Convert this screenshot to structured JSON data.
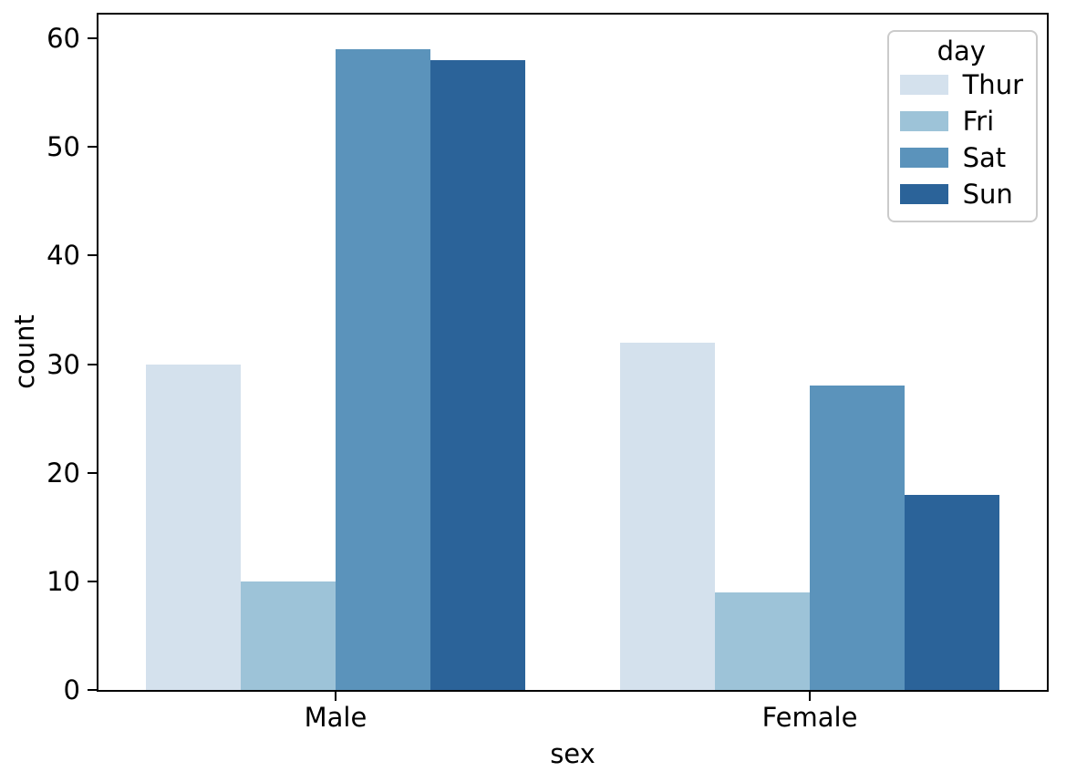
{
  "chart_data": {
    "type": "bar",
    "title": "",
    "xlabel": "sex",
    "ylabel": "count",
    "categories": [
      "Male",
      "Female"
    ],
    "series": [
      {
        "name": "Thur",
        "color": "#d4e1ed",
        "values": [
          30,
          32
        ]
      },
      {
        "name": "Fri",
        "color": "#9dc3d8",
        "values": [
          10,
          9
        ]
      },
      {
        "name": "Sat",
        "color": "#5b93bb",
        "values": [
          59,
          28
        ]
      },
      {
        "name": "Sun",
        "color": "#2b6399",
        "values": [
          58,
          18
        ]
      }
    ],
    "legend": {
      "title": "day",
      "position": "upper-right"
    },
    "axes": {
      "ylim": [
        0,
        62.2
      ],
      "yticks": [
        0,
        10,
        20,
        30,
        40,
        50,
        60
      ],
      "grid": false,
      "group_width": 0.8,
      "background": "#ffffff",
      "spine_color": "#000000"
    }
  }
}
